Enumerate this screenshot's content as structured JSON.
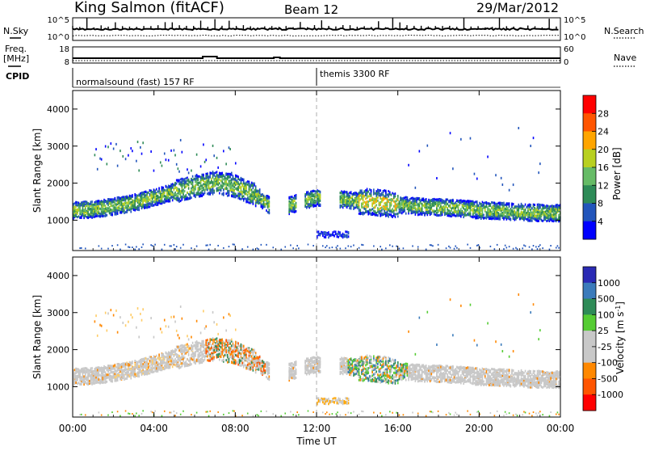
{
  "header": {
    "station": "King Salmon (fitACF)",
    "beam": "Beam 12",
    "date": "29/Mar/2012"
  },
  "left_labels": {
    "nsky": "N.Sky",
    "freq": "Freq.",
    "mhz": "[MHz]",
    "cpid": "CPID"
  },
  "right_labels": {
    "nsearch": "N.Search",
    "nave": "Nave"
  },
  "nsky_ticks": [
    "10^5",
    "10^0"
  ],
  "nsearch_ticks": [
    "10^5",
    "10^0"
  ],
  "freq_ticks": [
    "18",
    "8"
  ],
  "nave_ticks": [
    "60",
    "0"
  ],
  "cpid_segments": [
    {
      "label": "normalsound (fast) 157 RF",
      "start_h": 0
    },
    {
      "label": "themis 3300 RF",
      "start_h": 12
    }
  ],
  "colors": {
    "power_scale": [
      "#0000ff",
      "#2255bb",
      "#2e8b57",
      "#66bb66",
      "#b8d020",
      "#ffa500",
      "#ff5500",
      "#ff0000"
    ],
    "velocity_scale": [
      "#2a2ab4",
      "#3b7bbb",
      "#2e8b57",
      "#55cc33",
      "#c8c8c8",
      "#c8c8c8",
      "#ff8800",
      "#ff5500",
      "#ff0000"
    ]
  },
  "chart_data": [
    {
      "type": "heatmap",
      "panel": "power",
      "xlabel": "Time UT",
      "ylabel": "Slant Range [km]",
      "xlim": [
        0,
        24
      ],
      "ylim": [
        180,
        4500
      ],
      "x_ticks": [
        "00:00",
        "04:00",
        "08:00",
        "12:00",
        "16:00",
        "20:00",
        "00:00"
      ],
      "y_ticks": [
        1000,
        2000,
        3000,
        4000
      ],
      "colorbar_label": "Power [dB]",
      "colorbar_ticks": [
        "28",
        "24",
        "20",
        "16",
        "12",
        "8",
        "4"
      ],
      "main_band_center_km": [
        [
          0,
          1300
        ],
        [
          1,
          1320
        ],
        [
          2,
          1400
        ],
        [
          3,
          1500
        ],
        [
          4,
          1650
        ],
        [
          5,
          1800
        ],
        [
          6,
          1950
        ],
        [
          7,
          2050
        ],
        [
          8,
          1950
        ],
        [
          9,
          1700
        ],
        [
          10,
          1300
        ],
        [
          11,
          1500
        ],
        [
          12,
          1650
        ],
        [
          13,
          1600
        ],
        [
          14,
          1550
        ],
        [
          15,
          1500
        ],
        [
          16,
          1450
        ],
        [
          17,
          1400
        ],
        [
          18,
          1380
        ],
        [
          19,
          1350
        ],
        [
          20,
          1300
        ],
        [
          21,
          1280
        ],
        [
          22,
          1250
        ],
        [
          23,
          1230
        ],
        [
          24,
          1220
        ]
      ]
    },
    {
      "type": "heatmap",
      "panel": "velocity",
      "xlabel": "Time UT",
      "ylabel": "Slant Range [km]",
      "xlim": [
        0,
        24
      ],
      "ylim": [
        180,
        4500
      ],
      "x_ticks": [
        "00:00",
        "04:00",
        "08:00",
        "12:00",
        "16:00",
        "20:00",
        "00:00"
      ],
      "y_ticks": [
        1000,
        2000,
        3000,
        4000
      ],
      "colorbar_label": "Velocity [m s^-1]",
      "colorbar_ticks": [
        "1000",
        "500",
        "100",
        "25",
        "-25",
        "-100",
        "-500",
        "-1000"
      ]
    }
  ]
}
